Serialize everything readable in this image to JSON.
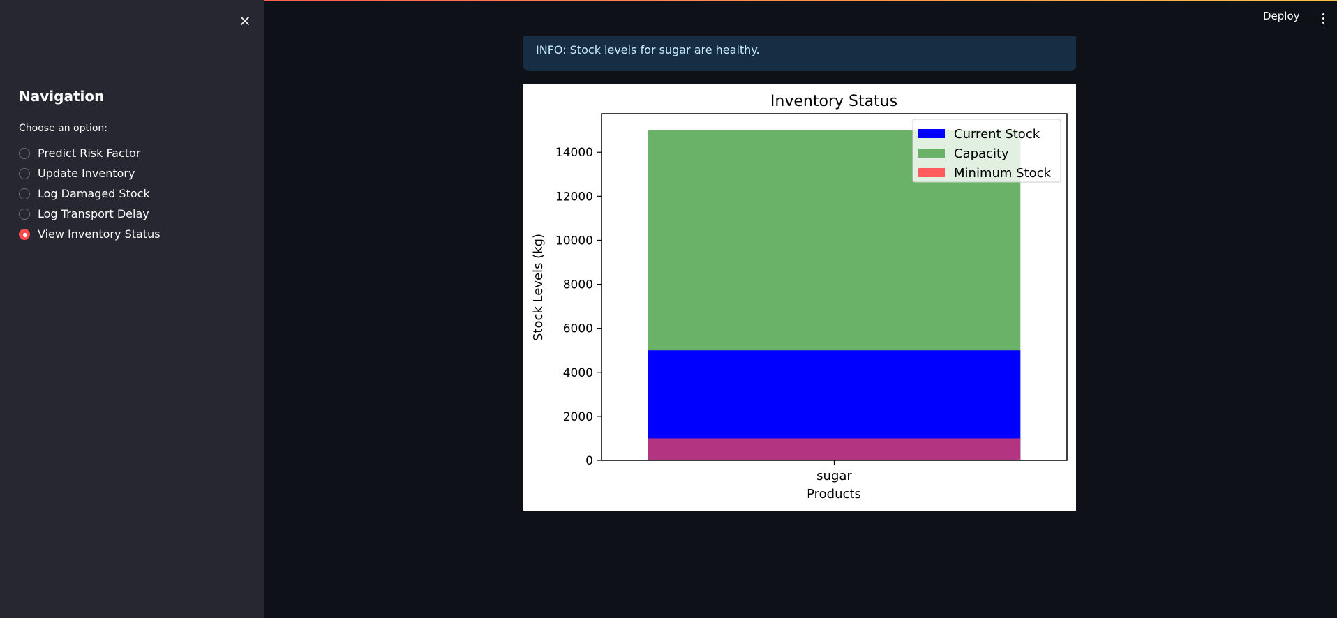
{
  "sidebar": {
    "close_icon": "close-icon",
    "title": "Navigation",
    "choose_label": "Choose an option:",
    "options": [
      {
        "label": "Predict Risk Factor",
        "selected": false
      },
      {
        "label": "Update Inventory",
        "selected": false
      },
      {
        "label": "Log Damaged Stock",
        "selected": false
      },
      {
        "label": "Log Transport Delay",
        "selected": false
      },
      {
        "label": "View Inventory Status",
        "selected": true
      }
    ]
  },
  "header": {
    "deploy_label": "Deploy",
    "menu_icon": "vertical-dots-icon"
  },
  "main": {
    "info_message": "INFO: Stock levels for sugar are healthy."
  },
  "colors": {
    "accent": "#ff4b4b",
    "current_stock": "#0000ff",
    "capacity": "#6ab268",
    "minimum_stock": "#ff4b4b",
    "overlap": "#b3004b"
  },
  "chart_data": {
    "type": "bar",
    "title": "Inventory Status",
    "xlabel": "Products",
    "ylabel": "Stock Levels (kg)",
    "categories": [
      "sugar"
    ],
    "series": [
      {
        "name": "Current Stock",
        "values": [
          5000
        ]
      },
      {
        "name": "Capacity",
        "values": [
          15000
        ]
      },
      {
        "name": "Minimum Stock",
        "values": [
          1000
        ]
      }
    ],
    "ylim": [
      0,
      15750
    ],
    "yticks": [
      0,
      2000,
      4000,
      6000,
      8000,
      10000,
      12000,
      14000
    ],
    "legend": "top-right",
    "grid": false
  }
}
